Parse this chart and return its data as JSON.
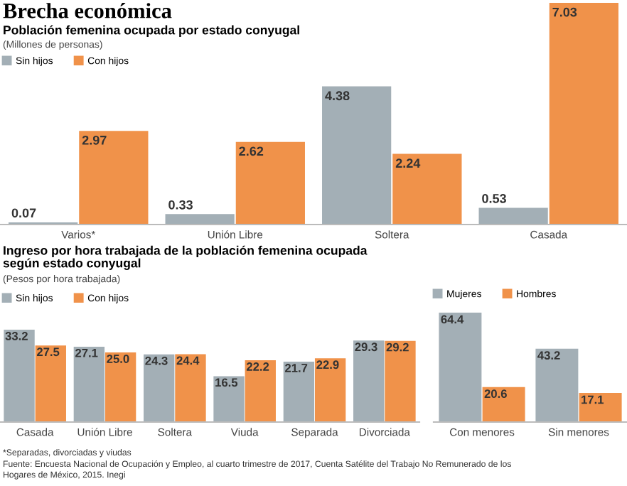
{
  "chart_data": [
    {
      "type": "bar",
      "title": "Brecha económica",
      "subtitle": "Población femenina ocupada por estado conyugal",
      "ylabel": "(Millones de personas)",
      "categories": [
        "Varios*",
        "Unión Libre",
        "Soltera",
        "Casada"
      ],
      "series": [
        {
          "name": "Sin hijos",
          "color": "#a3afb6",
          "values": [
            0.07,
            0.33,
            4.38,
            0.53
          ]
        },
        {
          "name": "Con hijos",
          "color": "#f0924a",
          "values": [
            2.97,
            2.62,
            2.24,
            7.03
          ]
        }
      ],
      "data_labels": true,
      "legend": "top left",
      "grid": false
    },
    {
      "type": "bar",
      "subtitle": "Ingreso por hora trabajada de la población femenina ocupada\nsegún estado conyugal",
      "ylabel": "(Pesos por hora trabajada)",
      "categories": [
        "Casada",
        "Unión Libre",
        "Soltera",
        "Viuda",
        "Separada",
        "Divorciada"
      ],
      "series": [
        {
          "name": "Sin hijos",
          "color": "#a3afb6",
          "values": [
            33.2,
            27.1,
            24.3,
            16.5,
            21.7,
            29.3
          ],
          "value_labels": [
            "33.2",
            "27.1",
            "24.3",
            "16.5",
            "21.7",
            "29.3"
          ]
        },
        {
          "name": "Con hijos",
          "color": "#f0924a",
          "values": [
            27.5,
            25.0,
            24.4,
            22.2,
            22.9,
            29.2
          ],
          "value_labels": [
            "27.5",
            "25.0",
            "24.4",
            "22.2",
            "22.9",
            "29.2"
          ]
        }
      ],
      "legend": "top left",
      "grid": false,
      "annotations": [
        "*Separadas, divorciadas y viudas",
        "Fuente: Encuesta Nacional de Ocupación y Empleo, al cuarto trimestre de 2017, Cuenta Satélite del Trabajo No Remunerado de los\nHogares de México, 2015. Inegi"
      ]
    },
    {
      "type": "bar",
      "categories": [
        "Con menores",
        "Sin menores"
      ],
      "series": [
        {
          "name": "Mujeres",
          "color": "#a3afb6",
          "values": [
            64.4,
            43.2
          ]
        },
        {
          "name": "Hombres",
          "color": "#f0924a",
          "values": [
            20.6,
            17.1
          ]
        }
      ],
      "data_labels": true,
      "legend": "top left",
      "grid": false
    }
  ]
}
